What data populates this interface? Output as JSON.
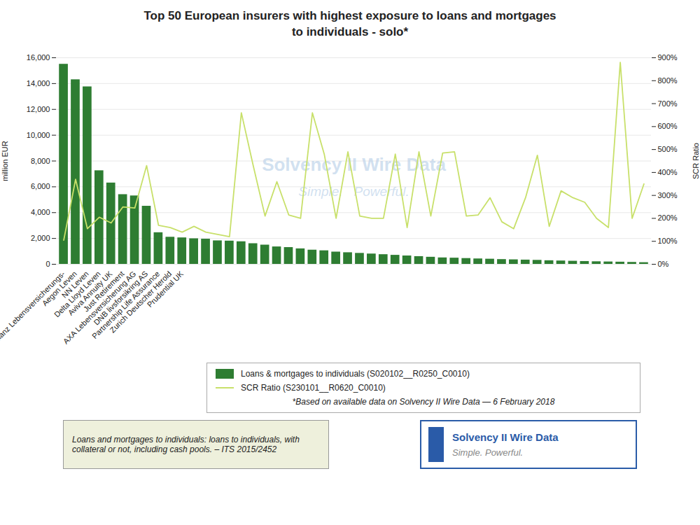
{
  "chart_data": {
    "type": "bar",
    "title": "Top 50 European insurers with highest exposure to loans and mortgages\nto individuals - solo*",
    "ylabel": "million EUR",
    "y2label": "SCR Ratio",
    "categories": [
      "Allianz Lebensversicherungs-",
      "Aegon Leven",
      "NN Leven",
      "Delta Lloyd Leven",
      "Aviva Annuity UK",
      "Just Retirement",
      "AXA Lebensversicherung AG",
      "DNB livsforsikring AS",
      "Partnership Life Assurance",
      "Zurich Deutscher Herold",
      "Prudential UK",
      null,
      null,
      null,
      null,
      null,
      null,
      null,
      null,
      null,
      null,
      null,
      null,
      null,
      null,
      null,
      null,
      null,
      null,
      null,
      null,
      null,
      null,
      null,
      null,
      null,
      null,
      null,
      null,
      null,
      null,
      null,
      null,
      null,
      null,
      null,
      null,
      null,
      null,
      null
    ],
    "series": [
      {
        "name": "Loans & mortgages to individuals  (S020102__R0250_C0010)",
        "type": "bar",
        "color": "#2e7d32",
        "values": [
          15500,
          14300,
          13750,
          7250,
          6300,
          5400,
          5300,
          4500,
          2450,
          2100,
          2050,
          1980,
          1950,
          1820,
          1800,
          1750,
          1600,
          1490,
          1350,
          1300,
          1200,
          1100,
          1050,
          950,
          900,
          850,
          800,
          750,
          700,
          650,
          600,
          550,
          500,
          480,
          450,
          420,
          400,
          370,
          350,
          330,
          310,
          280,
          260,
          240,
          220,
          200,
          185,
          170,
          150,
          130
        ]
      },
      {
        "name": "SCR Ratio (S230101__R0620_C0010)",
        "type": "line",
        "axis": "y2",
        "color": "#c8e06a",
        "values": [
          105,
          370,
          155,
          205,
          180,
          250,
          245,
          430,
          170,
          160,
          140,
          165,
          140,
          130,
          120,
          660,
          430,
          210,
          360,
          215,
          200,
          660,
          480,
          200,
          490,
          210,
          200,
          200,
          480,
          160,
          490,
          210,
          485,
          490,
          210,
          215,
          290,
          185,
          155,
          290,
          475,
          165,
          320,
          290,
          270,
          200,
          160,
          880,
          200,
          350
        ]
      }
    ],
    "ylim": [
      0,
      16000
    ],
    "yticks": [
      0,
      {
        "value": 2000,
        "label": "2,000"
      },
      {
        "value": 4000,
        "label": "4,000"
      },
      {
        "value": 6000,
        "label": "6,000"
      },
      {
        "value": 8000,
        "label": "8,000"
      },
      {
        "value": 10000,
        "label": "10,000"
      },
      {
        "value": 12000,
        "label": "12,000"
      },
      {
        "value": 14000,
        "label": "14,000"
      },
      {
        "value": 16000,
        "label": "16,000"
      }
    ],
    "y2lim": [
      0,
      900
    ],
    "y2ticks": [
      {
        "value": 0,
        "label": "0%"
      },
      {
        "value": 100,
        "label": "100%"
      },
      {
        "value": 200,
        "label": "200%"
      },
      {
        "value": 300,
        "label": "300%"
      },
      {
        "value": 400,
        "label": "400%"
      },
      {
        "value": 500,
        "label": "500%"
      },
      {
        "value": 600,
        "label": "600%"
      },
      {
        "value": 700,
        "label": "700%"
      },
      {
        "value": 800,
        "label": "800%"
      },
      {
        "value": 900,
        "label": "900%"
      }
    ],
    "grid": true,
    "legend": "bottom",
    "annotations": [
      "Solvency II Wire Data",
      "Simple.   Powerful.",
      "*Based on available data on Solvency II Wire Data — 6 February 2018",
      "Loans and mortgages to individuals: loans to individuals, with\ncollateral or not, including cash pools. – ITS 2015/2452",
      "Solvency II Wire Data",
      "Simple. Powerful."
    ]
  }
}
